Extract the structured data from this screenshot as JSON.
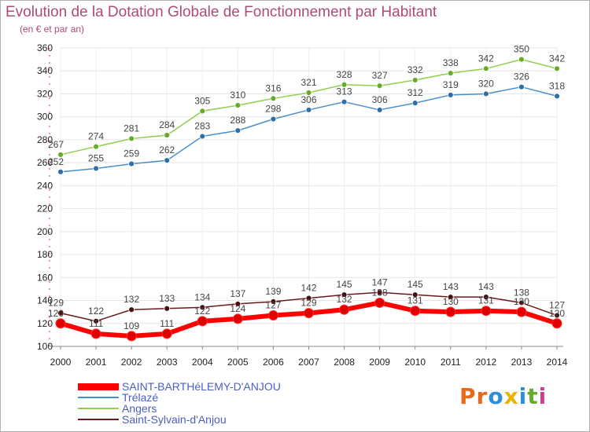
{
  "chart_data": {
    "type": "line",
    "title": "Evolution de la Dotation Globale de Fonctionnement par Habitant",
    "subtitle": "(en € et par an)",
    "xlabel": "",
    "ylabel": "",
    "ylim": [
      100,
      360
    ],
    "yticks": [
      100,
      120,
      140,
      160,
      180,
      200,
      220,
      240,
      260,
      280,
      300,
      320,
      340,
      360
    ],
    "categories": [
      "2000",
      "2001",
      "2002",
      "2003",
      "2004",
      "2005",
      "2006",
      "2007",
      "2008",
      "2009",
      "2010",
      "2011",
      "2012",
      "2013",
      "2014"
    ],
    "grid": true,
    "legend_position": "bottom-left",
    "series": [
      {
        "name": "SAINT-BARTHéLEMY-D'ANJOU",
        "color": "#ff0000",
        "values": [
          120,
          111,
          109,
          111,
          122,
          124,
          127,
          129,
          132,
          138,
          131,
          130,
          131,
          130,
          120
        ]
      },
      {
        "name": "Trélazé",
        "color": "#4a8ec8",
        "values": [
          252,
          255,
          259,
          262,
          283,
          288,
          298,
          306,
          313,
          306,
          312,
          319,
          320,
          326,
          318
        ]
      },
      {
        "name": "Angers",
        "color": "#8ed04e",
        "values": [
          267,
          274,
          281,
          284,
          305,
          310,
          316,
          321,
          328,
          327,
          332,
          338,
          342,
          350,
          342
        ]
      },
      {
        "name": "Saint-Sylvain-d'Anjou",
        "color": "#6a1a1a",
        "values": [
          129,
          122,
          132,
          133,
          134,
          137,
          139,
          142,
          145,
          147,
          145,
          143,
          143,
          138,
          127
        ]
      }
    ]
  },
  "logo": {
    "letters": [
      "P",
      "r",
      "o",
      "x",
      "i",
      "t",
      "i"
    ],
    "colors": [
      "#e46b1e",
      "#e46b1e",
      "#2d8fd8",
      "#e8b400",
      "#2d8fd8",
      "#6aaa2a",
      "#d23a8a"
    ]
  }
}
